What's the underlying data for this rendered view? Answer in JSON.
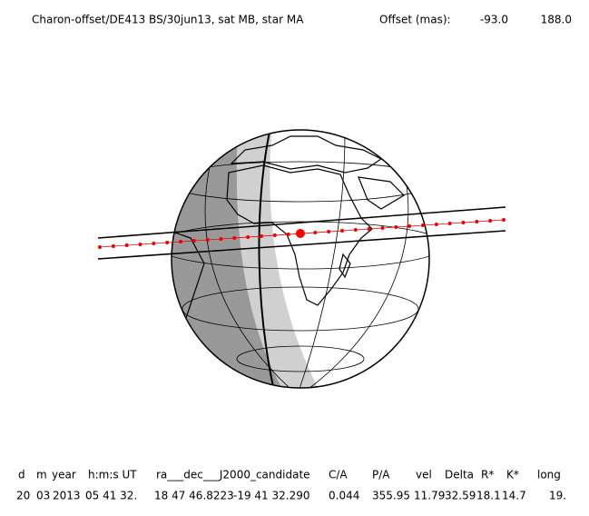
{
  "header": {
    "title": "Charon-offset/DE413 BS/30jun13, sat MB, star MA",
    "offset_label": "Offset (mas):",
    "offset_values": [
      "-93.0",
      "188.0"
    ]
  },
  "table": {
    "columns": [
      "d",
      "m",
      "year",
      "h:m:s UT",
      "ra___dec___J2000_candidate",
      "C/A",
      "P/A",
      "vel",
      "Delta",
      "R*",
      "K*",
      "long"
    ],
    "rows": [
      [
        "20",
        "03",
        "2013",
        "05 41 32.",
        "18 47 46.8223",
        "-19 41  32.290",
        "0.044",
        "355.95",
        "11.79",
        "32.59",
        "18.1",
        "14.7",
        "19."
      ]
    ]
  }
}
